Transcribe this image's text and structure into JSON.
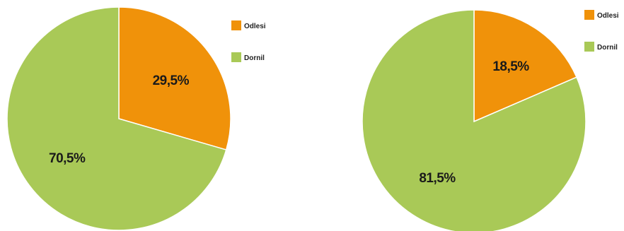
{
  "colors": {
    "orange": "#F0920A",
    "green": "#A9C957",
    "stroke": "#ffffff"
  },
  "chart_data": [
    {
      "type": "pie",
      "start_angle_deg": 0,
      "direction": "clockwise",
      "slices": [
        {
          "name": "Odlesi",
          "value": 29.5,
          "label": "29,5%",
          "color": "#F0920A"
        },
        {
          "name": "Dornil",
          "value": 70.5,
          "label": "70,5%",
          "color": "#A9C957"
        }
      ],
      "legend": {
        "placement": "right",
        "entries": [
          {
            "label": "Odlesi",
            "color": "#F0920A"
          },
          {
            "label": "Dornil",
            "color": "#A9C957"
          }
        ]
      }
    },
    {
      "type": "pie",
      "start_angle_deg": 0,
      "direction": "clockwise",
      "slices": [
        {
          "name": "Odlesi",
          "value": 18.5,
          "label": "18,5%",
          "color": "#F0920A"
        },
        {
          "name": "Dornil",
          "value": 81.5,
          "label": "81,5%",
          "color": "#A9C957"
        }
      ],
      "legend": {
        "placement": "right",
        "entries": [
          {
            "label": "Odlesi",
            "color": "#F0920A"
          },
          {
            "label": "Dornil",
            "color": "#A9C957"
          }
        ]
      }
    }
  ]
}
